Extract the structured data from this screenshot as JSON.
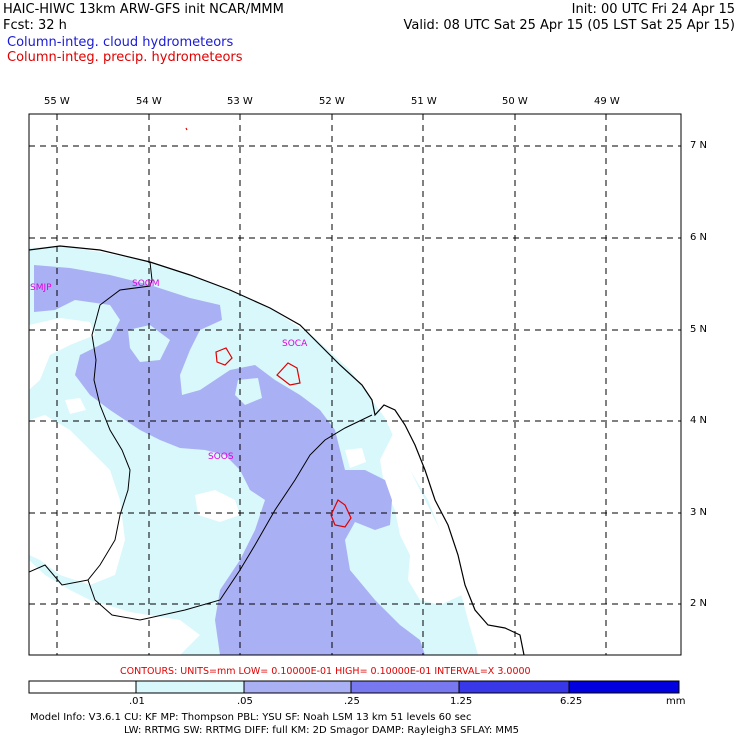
{
  "header": {
    "title": "HAIC-HIWC 13km ARW-GFS init   NCAR/MMM",
    "forecast": "Fcst:    32 h",
    "init": "Init: 00 UTC Fri 24 Apr 15",
    "valid": "Valid: 08 UTC Sat 25 Apr 15 (05 LST Sat 25 Apr 15)",
    "legend_cloud": "Column-integ. cloud hydrometeors",
    "legend_precip": "Column-integ. precip. hydrometeors",
    "legend_cloud_color": "#1a1ad6",
    "legend_precip_color": "#e00000"
  },
  "map": {
    "lon_labels": [
      "55 W",
      "54 W",
      "53 W",
      "52 W",
      "51 W",
      "50 W",
      "49 W"
    ],
    "lat_labels": [
      "7 N",
      "6 N",
      "5 N",
      "4 N",
      "3 N",
      "2 N"
    ],
    "stations": [
      "SMJP",
      "SOGM",
      "SOCA",
      "SOOS"
    ],
    "station_color": "#e000e0",
    "fill_colors": {
      "light": "#d8f8fc",
      "medium": "#aab0f4",
      "ocean": "#ffffff"
    },
    "precip_contour_color": "#e00000",
    "border_color": "#000000"
  },
  "contours": {
    "text": "CONTOURS:  UNITS=mm   LOW= 0.10000E-01   HIGH= 0.10000E-01   INTERVAL=X   3.0000",
    "color": "#e00000"
  },
  "colorbar": {
    "ticks": [
      ".01",
      ".05",
      ".25",
      "1.25",
      "6.25"
    ],
    "units": "mm",
    "colors": [
      "#ffffff",
      "#d8f8fc",
      "#aab0f4",
      "#7878f0",
      "#3838e8",
      "#0000e0"
    ]
  },
  "model_info": {
    "line1": "Model Info: V3.6.1    CU: KF       MP: Thompson      PBL: YSU        SF: Noah LSM      13 km    51 levels   60 sec",
    "line2": "LW: RRTMG     SW: RRTMG   DIFF: full     KM: 2D Smagor DAMP: Rayleigh3   SFLAY: MM5"
  }
}
